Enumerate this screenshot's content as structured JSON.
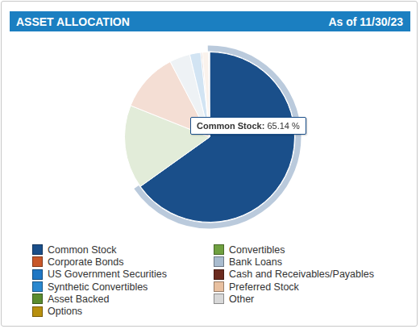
{
  "chart_data": {
    "type": "pie",
    "title": "ASSET ALLOCATION",
    "subtitle": "As of 11/30/23",
    "categories": [
      "Common Stock",
      "Convertibles",
      "Corporate Bonds",
      "Bank Loans",
      "US Government Securities",
      "Cash and Receivables/Payables",
      "Synthetic Convertibles",
      "Preferred Stock",
      "Asset Backed",
      "Other",
      "Options"
    ],
    "values": [
      65.14,
      15.9,
      11.3,
      3.9,
      2.1,
      0.3,
      0,
      1.2,
      0,
      0.16,
      0
    ],
    "colors": [
      "#1a4f8a",
      "#6fa040",
      "#c8582a",
      "#a9bccf",
      "#1f77c4",
      "#6b2a1e",
      "#2a88cf",
      "#e8c0a0",
      "#5b8c2e",
      "#d8d8d8",
      "#b8900e"
    ],
    "legend": "bottom",
    "annotations": [
      {
        "title": "Common Stock:",
        "text": "65.14 %"
      }
    ]
  }
}
